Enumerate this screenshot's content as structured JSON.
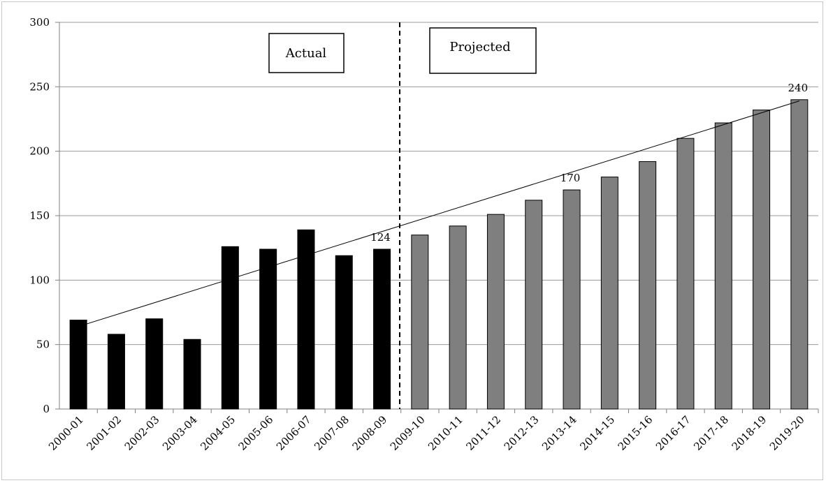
{
  "chart_data": {
    "type": "bar",
    "title": "",
    "xlabel": "",
    "ylabel": "",
    "ylim": [
      0,
      300
    ],
    "yticks": [
      0,
      50,
      100,
      150,
      200,
      250,
      300
    ],
    "grid": true,
    "categories": [
      "2000-01",
      "2001-02",
      "2002-03",
      "2003-04",
      "2004-05",
      "2005-06",
      "2006-07",
      "2007-08",
      "2008-09",
      "2009-10",
      "2010-11",
      "2011-12",
      "2012-13",
      "2013-14",
      "2014-15",
      "2015-16",
      "2016-17",
      "2017-18",
      "2018-19",
      "2019-20"
    ],
    "series": [
      {
        "values": [
          69,
          58,
          70,
          54,
          126,
          124,
          139,
          119,
          124,
          135,
          142,
          151,
          162,
          170,
          180,
          192,
          210,
          222,
          232,
          240
        ]
      }
    ],
    "actual_count": 9,
    "trendline": {
      "start": 64,
      "end": 239
    },
    "data_labels": [
      {
        "category": "2008-09",
        "text": "124"
      },
      {
        "category": "2013-14",
        "text": "170"
      },
      {
        "category": "2019-20",
        "text": "240"
      }
    ],
    "annotations": {
      "actual": "Actual",
      "projected": "Projected"
    },
    "colors": {
      "actual": "#000000",
      "projected": "#7f7f7f",
      "grid": "#999999",
      "trend": "#000000"
    }
  }
}
